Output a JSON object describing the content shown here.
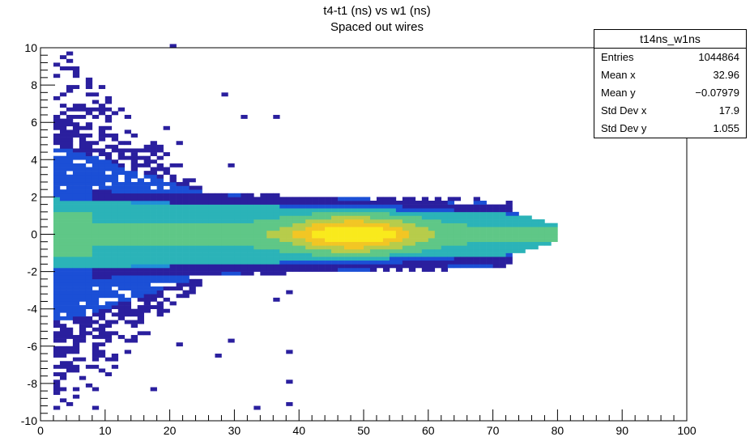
{
  "chart_data": {
    "type": "heatmap",
    "title": "t4-t1 (ns) vs w1 (ns)",
    "subtitle": "Spaced out wires",
    "xlabel": "",
    "ylabel": "",
    "xlim": [
      0,
      100
    ],
    "ylim": [
      -10,
      10
    ],
    "x_ticks": [
      0,
      10,
      20,
      30,
      40,
      50,
      60,
      70,
      80,
      90,
      100
    ],
    "y_ticks": [
      -10,
      -8,
      -6,
      -4,
      -2,
      0,
      2,
      4,
      6,
      8,
      10
    ],
    "grid": false,
    "colormap": [
      "#2a1f9e",
      "#1b4fd6",
      "#1f8fd8",
      "#2bb3b8",
      "#5fc787",
      "#b7cc4b",
      "#f2c624",
      "#f9ea1c"
    ],
    "distribution": {
      "x_start": 2,
      "x_end": 80,
      "center_y": 0,
      "core_band": [
        -1.8,
        1.8
      ],
      "peak_x": 48,
      "peak_y": 0,
      "tail_max_y": 10,
      "tail_min_y": -10
    },
    "stats": {
      "name": "t14ns_w1ns",
      "rows": [
        {
          "label": "Entries",
          "value": "1044864"
        },
        {
          "label": "Mean x",
          "value": "32.96"
        },
        {
          "label": "Mean y",
          "value": "−0.07979"
        },
        {
          "label": "Std Dev x",
          "value": "17.9"
        },
        {
          "label": "Std Dev y",
          "value": "1.055"
        }
      ]
    }
  }
}
